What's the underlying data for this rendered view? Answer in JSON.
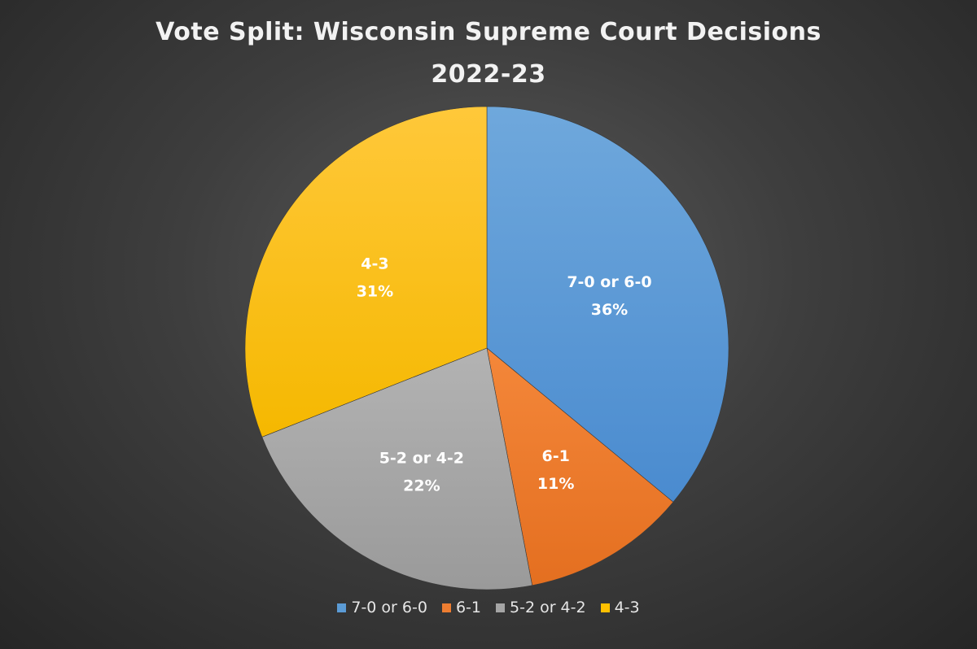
{
  "chart_data": {
    "type": "pie",
    "title": "Vote Split: Wisconsin Supreme Court Decisions",
    "subtitle": "2022-23",
    "slices": [
      {
        "label": "7-0 or 6-0",
        "value": 36,
        "display": "36%",
        "color": "#5b9bd5"
      },
      {
        "label": "6-1",
        "value": 11,
        "display": "11%",
        "color": "#ed7d31"
      },
      {
        "label": "5-2 or 4-2",
        "value": 22,
        "display": "22%",
        "color": "#a5a5a5"
      },
      {
        "label": "4-3",
        "value": 31,
        "display": "31%",
        "color": "#ffc000"
      }
    ],
    "legend_position": "bottom",
    "data_labels": "category and percent, inside slices"
  }
}
